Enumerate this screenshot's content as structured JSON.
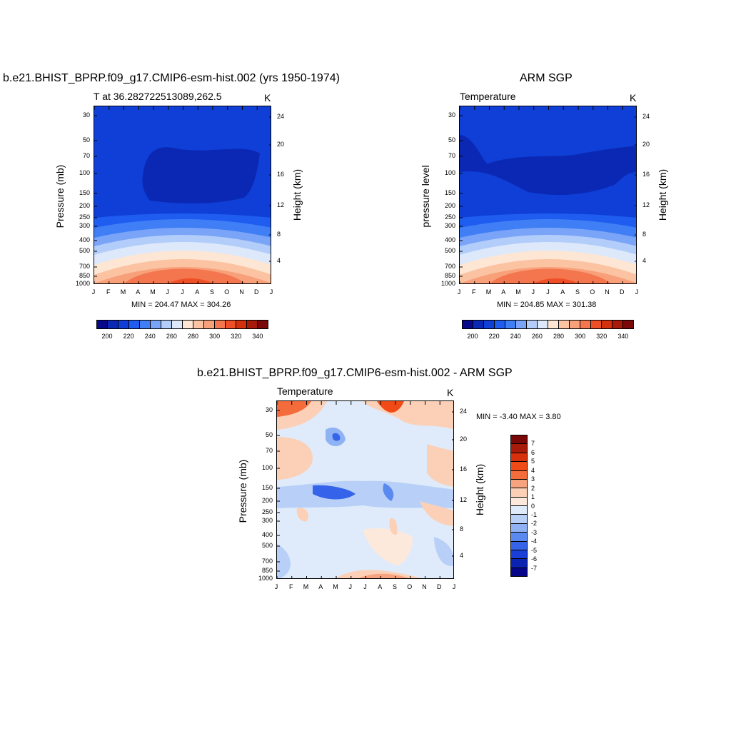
{
  "titles": {
    "left": "b.e21.BHIST_BPRP.f09_g17.CMIP6-esm-hist.002 (yrs 1950-1974)",
    "right": "ARM SGP",
    "bottom": "b.e21.BHIST_BPRP.f09_g17.CMIP6-esm-hist.002 - ARM SGP"
  },
  "panels": {
    "left": {
      "subtitle": "T at 36.282722513089,262.5",
      "unit": "K",
      "ylabel": "Pressure (mb)",
      "ylabel_right": "Height (km)",
      "stats": "MIN = 204.47 MAX = 304.26"
    },
    "right": {
      "subtitle": "Temperature",
      "unit": "K",
      "ylabel": "pressure level",
      "ylabel_right": "Height (km)",
      "stats": "MIN = 204.85 MAX = 301.38"
    },
    "bottom": {
      "subtitle": "Temperature",
      "unit": "K",
      "ylabel": "Pressure (mb)",
      "ylabel_right": "Height (km)",
      "stats": "MIN =  -3.40 MAX =   3.80"
    }
  },
  "chart_data": [
    {
      "type": "heatmap",
      "title": "b.e21.BHIST_BPRP.f09_g17.CMIP6-esm-hist.002 (yrs 1950-1974)",
      "subtitle": "T at 36.282722513089,262.5",
      "units": "K",
      "x_ticks": [
        "J",
        "F",
        "M",
        "A",
        "M",
        "J",
        "J",
        "A",
        "S",
        "O",
        "N",
        "D",
        "J"
      ],
      "y_ticks": [
        "30",
        "50",
        "70",
        "100",
        "150",
        "200",
        "250",
        "300",
        "400",
        "500",
        "700",
        "850",
        "1000"
      ],
      "y2_ticks": [
        "24",
        "20",
        "16",
        "12",
        "8",
        "4"
      ],
      "colorbar_ticks": [
        "200",
        "220",
        "240",
        "260",
        "280",
        "300",
        "320",
        "340"
      ],
      "min": 204.47,
      "max": 304.26
    },
    {
      "type": "heatmap",
      "title": "ARM SGP",
      "subtitle": "Temperature",
      "units": "K",
      "x_ticks": [
        "J",
        "F",
        "M",
        "A",
        "M",
        "J",
        "J",
        "A",
        "S",
        "O",
        "N",
        "D",
        "J"
      ],
      "y_ticks": [
        "30",
        "50",
        "70",
        "100",
        "150",
        "200",
        "250",
        "300",
        "400",
        "500",
        "700",
        "850",
        "1000"
      ],
      "y2_ticks": [
        "24",
        "20",
        "16",
        "12",
        "8",
        "4"
      ],
      "colorbar_ticks": [
        "200",
        "220",
        "240",
        "260",
        "280",
        "300",
        "320",
        "340"
      ],
      "min": 204.85,
      "max": 301.38
    },
    {
      "type": "heatmap",
      "title": "b.e21.BHIST_BPRP.f09_g17.CMIP6-esm-hist.002 - ARM SGP",
      "subtitle": "Temperature",
      "units": "K",
      "x_ticks": [
        "J",
        "F",
        "M",
        "A",
        "M",
        "J",
        "J",
        "A",
        "S",
        "O",
        "N",
        "D",
        "J"
      ],
      "y_ticks": [
        "30",
        "50",
        "70",
        "100",
        "150",
        "200",
        "250",
        "300",
        "400",
        "500",
        "700",
        "850",
        "1000"
      ],
      "y2_ticks": [
        "24",
        "20",
        "16",
        "12",
        "8",
        "4"
      ],
      "colorbar_ticks": [
        "7",
        "6",
        "5",
        "4",
        "3",
        "2",
        "1",
        "0",
        "-1",
        "-2",
        "-3",
        "-4",
        "-5",
        "-6",
        "-7"
      ],
      "min": -3.4,
      "max": 3.8
    }
  ],
  "colors": {
    "temp_scale": [
      "#08088a",
      "#0b28b4",
      "#0f3fd6",
      "#1f5cf0",
      "#3f7ef5",
      "#7aa4f7",
      "#b3cdfa",
      "#dde9fb",
      "#fde6d4",
      "#fbc3a2",
      "#f7a07a",
      "#f3764f",
      "#ef4f26",
      "#d4300e",
      "#a81a0a",
      "#7a0808"
    ],
    "diff_scale": [
      "#7a0808",
      "#a81a0a",
      "#d8300c",
      "#f04a16",
      "#f56c3c",
      "#f8a37f",
      "#fbd0b7",
      "#fde9dc",
      "#dfebfb",
      "#b8d0f8",
      "#8fb2f5",
      "#5a8af0",
      "#3564ea",
      "#1a3fd8",
      "#0c22b0",
      "#06068a"
    ]
  }
}
